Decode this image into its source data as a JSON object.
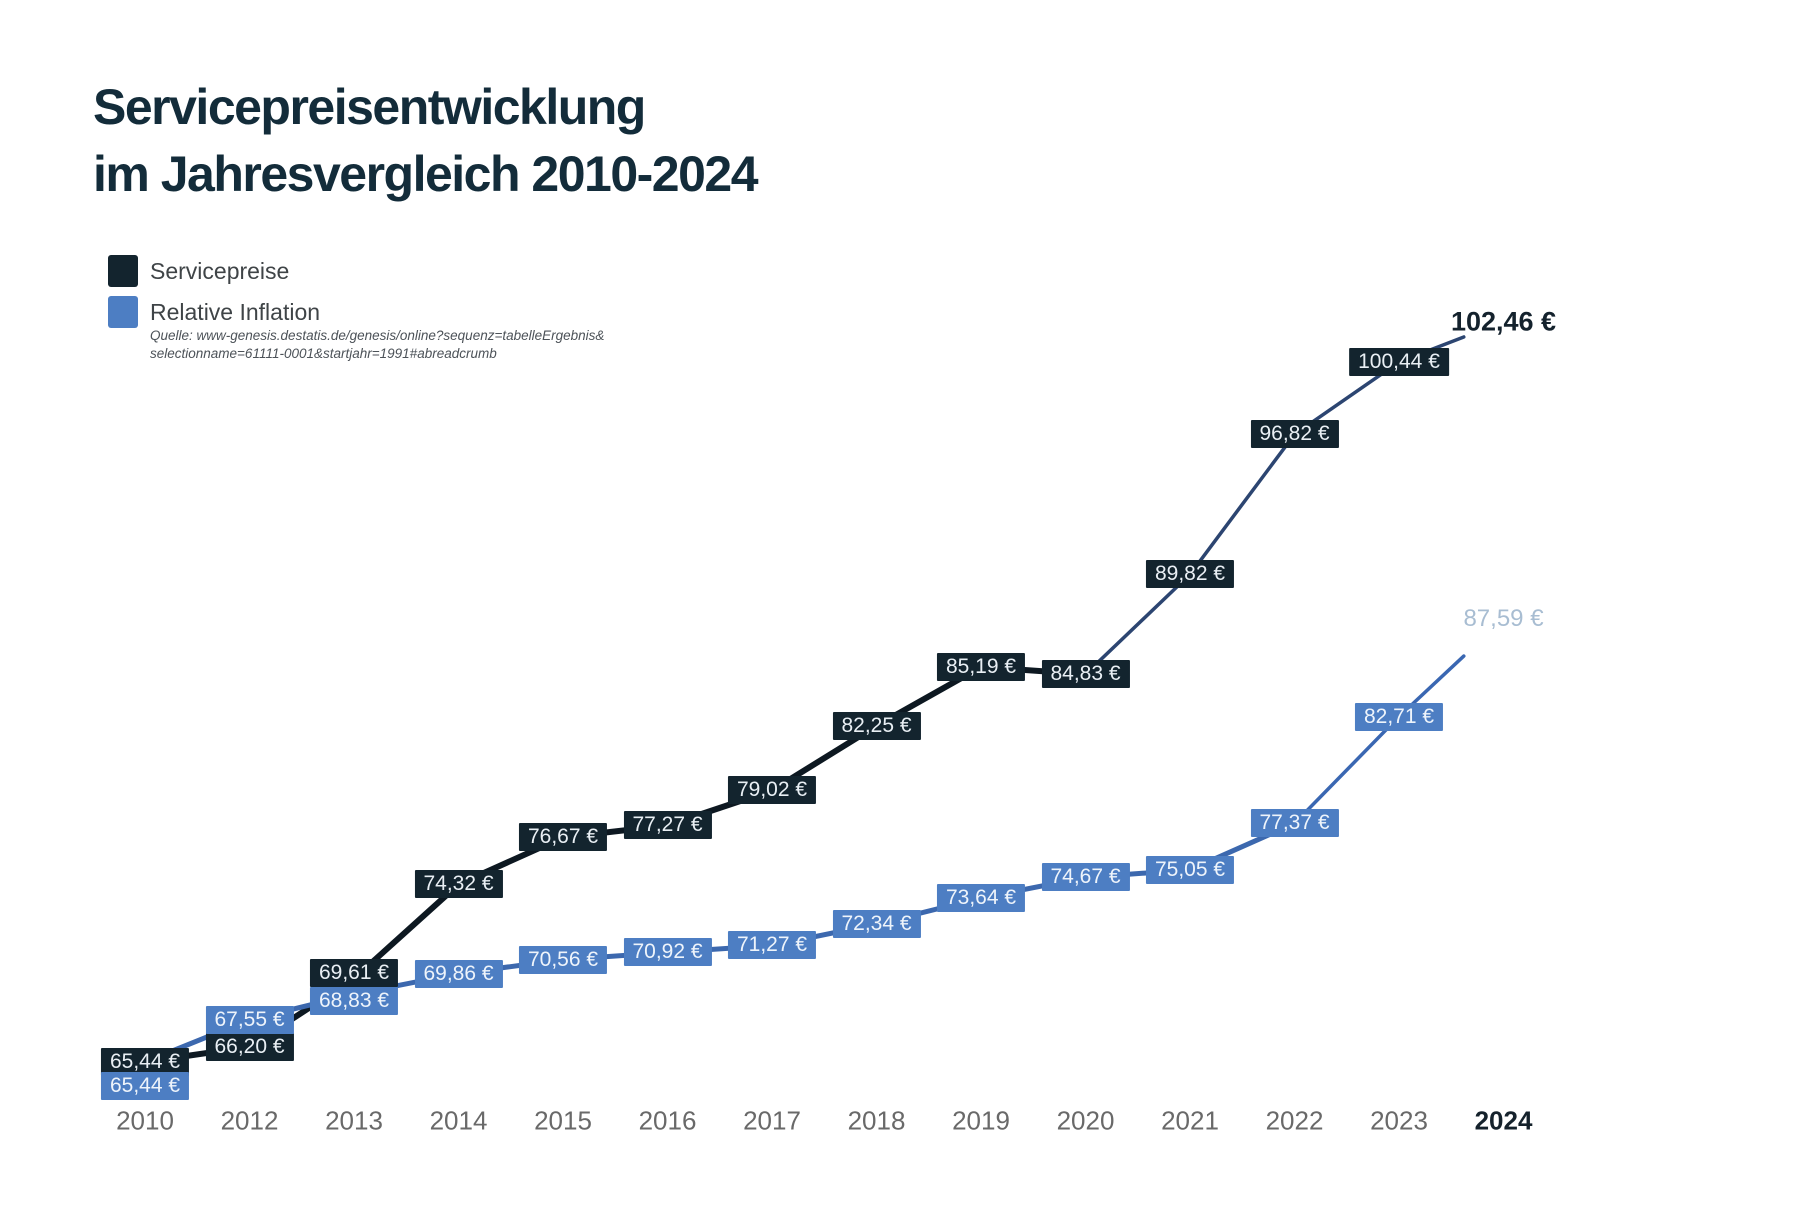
{
  "page": {
    "title_line1": "Servicepreisentwicklung",
    "title_line2": "im Jahresvergleich 2010-2024",
    "title_color": "#132c3a",
    "background": "#ffffff"
  },
  "legend": {
    "items": [
      {
        "label": "Servicepreise",
        "color": "#13242e"
      },
      {
        "label": "Relative Inflation",
        "color": "#4d7ec3"
      }
    ],
    "source_line1": "Quelle: www-genesis.destatis.de/genesis/online?sequenz=tabelleErgebnis&",
    "source_line2": "selectionname=61111-0001&startjahr=1991#abreadcrumb"
  },
  "chart_data": {
    "type": "line",
    "categories": [
      "2010",
      "2012",
      "2013",
      "2014",
      "2015",
      "2016",
      "2017",
      "2018",
      "2019",
      "2020",
      "2021",
      "2022",
      "2023",
      "2024"
    ],
    "highlight_category": "2024",
    "grid": false,
    "legend_position": "top-left",
    "ylim": [
      63,
      104
    ],
    "currency": "EUR",
    "series": [
      {
        "name": "Servicepreise",
        "line_color": "#0d1821",
        "line_color_upper": "#2c4571",
        "box_color": "#13242e",
        "box_text_color": "#e9eff4",
        "final_label_color": "#14222d",
        "values": [
          65.44,
          66.2,
          69.61,
          74.32,
          76.67,
          77.27,
          79.02,
          82.25,
          85.19,
          84.83,
          89.82,
          96.82,
          100.44,
          102.46
        ],
        "labels": [
          "65,44 €",
          "66,20 €",
          "69,61 €",
          "74,32 €",
          "76,67 €",
          "77,27 €",
          "79,02 €",
          "82,25 €",
          "85,19 €",
          "84,83 €",
          "89,82 €",
          "96,82 €",
          "100,44 €",
          "102,46 €"
        ]
      },
      {
        "name": "Relative Inflation",
        "line_color": "#3c68ae",
        "line_color_upper": "#3a67b2",
        "box_color": "#4d7ec3",
        "box_text_color": "#eef4fb",
        "final_label_color": "#a8bdd2",
        "values": [
          65.44,
          67.55,
          68.83,
          69.86,
          70.56,
          70.92,
          71.27,
          72.34,
          73.64,
          74.67,
          75.05,
          77.37,
          82.71,
          87.59
        ],
        "labels": [
          "65,44 €",
          "67,55 €",
          "68,83 €",
          "69,86 €",
          "70,56 €",
          "70,92 €",
          "71,27 €",
          "72,34 €",
          "73,64 €",
          "74,67 €",
          "75,05 €",
          "77,37 €",
          "82,71 €",
          "87,59 €"
        ]
      }
    ]
  }
}
